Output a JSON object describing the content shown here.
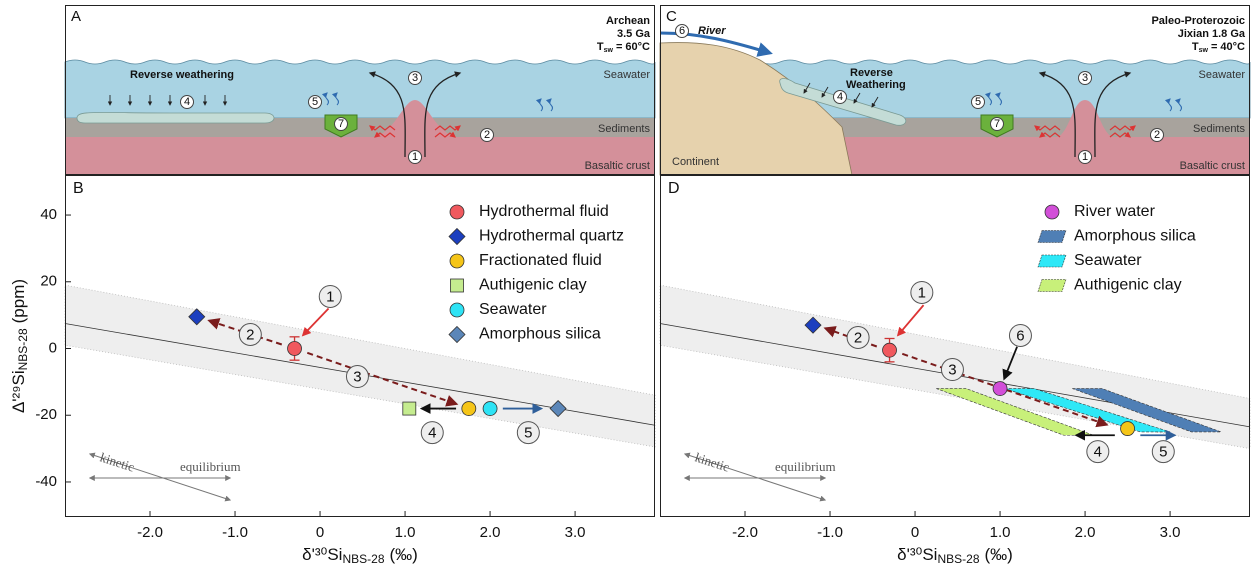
{
  "panels": [
    {
      "letter": "A",
      "title": [
        "Archean",
        "3.5 Ga"
      ],
      "temperature": {
        "symbol": "T",
        "sub": "sw",
        "value": "= 60°C"
      },
      "layers": [
        "Seawater",
        "Sediments",
        "Basaltic crust"
      ],
      "process": "Reverse weathering",
      "markers": [
        "1",
        "2",
        "3",
        "4",
        "5",
        "7"
      ]
    },
    {
      "letter": "C",
      "title": [
        "Paleo-Proterozoic",
        "Jixian 1.8 Ga"
      ],
      "temperature": {
        "symbol": "T",
        "sub": "sw",
        "value": "= 40°C"
      },
      "layers": [
        "Seawater",
        "Sediments",
        "Basaltic crust"
      ],
      "process": [
        "Reverse",
        "Weathering"
      ],
      "river": "River",
      "continent": "Continent",
      "markers": [
        "1",
        "2",
        "3",
        "4",
        "5",
        "6",
        "7"
      ]
    }
  ],
  "chart_data": [
    {
      "type": "scatter",
      "letter": "B",
      "legend": "upper right",
      "xlabel": [
        "δ'³⁰Si",
        "NBS-28",
        "(‰)"
      ],
      "ylabel": [
        "Δ'²⁹Si",
        "NBS-28",
        "(ppm)"
      ],
      "xlim": [
        -3.0,
        3.94
      ],
      "ylim": [
        -50.5,
        52
      ],
      "xticks": [
        {
          "value": -2,
          "label": "-2.0"
        },
        {
          "value": -1,
          "label": "-1.0"
        },
        0,
        {
          "value": 1,
          "label": "1.0"
        },
        {
          "value": 2,
          "label": "2.0"
        },
        {
          "value": 3,
          "label": "3.0"
        }
      ],
      "yticks": [
        -40,
        -20,
        0,
        20,
        40
      ],
      "reference_line": {
        "x": [
          -3.0,
          3.94
        ],
        "values": [
          7.5,
          -23
        ]
      },
      "band": {
        "x": [
          -3.0,
          3.94
        ],
        "upper": [
          19,
          -14
        ],
        "lower": [
          1,
          -29.5
        ]
      },
      "series": [
        {
          "name": "Hydrothermal fluid",
          "color": "#f0595e",
          "marker": "circle",
          "x": [
            -0.3
          ],
          "values": [
            0
          ],
          "errors": [
            3.5
          ]
        },
        {
          "name": "Hydrothermal quartz",
          "color": "#1c3fbf",
          "marker": "diamond",
          "x": [
            -1.45
          ],
          "values": [
            9.5
          ]
        },
        {
          "name": "Fractionated fluid",
          "color": "#f5c518",
          "marker": "circle",
          "x": [
            1.75
          ],
          "values": [
            -18
          ]
        },
        {
          "name": "Authigenic clay",
          "color": "#c5ec8f",
          "marker": "square",
          "x": [
            1.05
          ],
          "values": [
            -18
          ]
        },
        {
          "name": "Seawater",
          "color": "#2ee3f5",
          "marker": "circle",
          "x": [
            2.0
          ],
          "values": [
            -18
          ]
        },
        {
          "name": "Amorphous silica",
          "color": "#5b86b8",
          "marker": "diamond",
          "x": [
            2.8
          ],
          "values": [
            -18
          ]
        }
      ],
      "annotations": [
        "1",
        "2",
        "3",
        "4",
        "5"
      ],
      "inset_labels": [
        "kinetic",
        "equilibrium"
      ]
    },
    {
      "type": "scatter",
      "letter": "D",
      "legend": "upper right",
      "xlabel": [
        "δ'³⁰Si",
        "NBS-28",
        "(‰)"
      ],
      "xlim": [
        -3.0,
        3.94
      ],
      "ylim": [
        -50.5,
        52
      ],
      "xticks": [
        {
          "value": -2,
          "label": "-2.0"
        },
        {
          "value": -1,
          "label": "-1.0"
        },
        0,
        {
          "value": 1,
          "label": "1.0"
        },
        {
          "value": 2,
          "label": "2.0"
        },
        {
          "value": 3,
          "label": "3.0"
        }
      ],
      "reference_line": {
        "x": [
          -3.0,
          3.94
        ],
        "values": [
          7.5,
          -23.5
        ]
      },
      "band": {
        "x": [
          -3.0,
          3.94
        ],
        "upper": [
          19,
          -15
        ],
        "lower": [
          1,
          -30
        ]
      },
      "series": [
        {
          "name": "River water",
          "color": "#d24fd8",
          "marker": "circle",
          "x": [
            1.0
          ],
          "values": [
            -12
          ]
        },
        {
          "name": "Amorphous silica",
          "color": "#4f7fb5",
          "marker": "polygon",
          "x": [
            1.85,
            2.2,
            3.6,
            3.25
          ],
          "values": [
            -12,
            -12,
            -25,
            -25
          ]
        },
        {
          "name": "Seawater",
          "color": "#2ee8f7",
          "marker": "polygon",
          "x": [
            1.05,
            1.4,
            3.0,
            2.65
          ],
          "values": [
            -12,
            -12,
            -25,
            -25
          ]
        },
        {
          "name": "Authigenic clay",
          "color": "#c8f07a",
          "marker": "polygon",
          "x": [
            0.25,
            0.6,
            2.1,
            1.75
          ],
          "values": [
            -12,
            -12,
            -26,
            -26
          ]
        },
        {
          "color": "#1c3fbf",
          "marker": "diamond",
          "x": [
            -1.2
          ],
          "values": [
            7
          ]
        },
        {
          "color": "#f0595e",
          "marker": "circle",
          "x": [
            -0.3
          ],
          "values": [
            -0.5
          ],
          "errors": [
            3.5
          ]
        },
        {
          "color": "#f5c518",
          "marker": "circle",
          "x": [
            2.5
          ],
          "values": [
            -24
          ]
        }
      ],
      "annotations": [
        "1",
        "2",
        "3",
        "6",
        "4",
        "5"
      ],
      "inset_labels": [
        "kinetic",
        "equilibrium"
      ]
    }
  ]
}
